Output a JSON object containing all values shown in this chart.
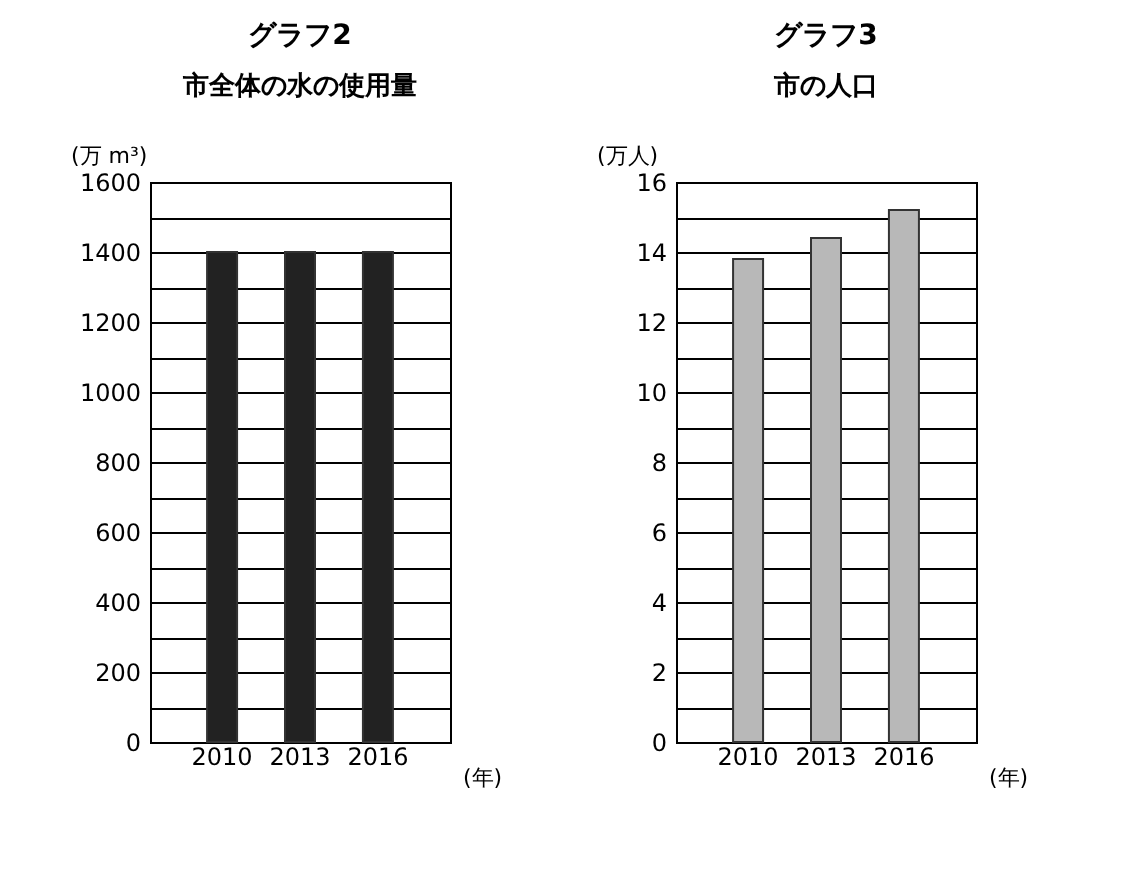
{
  "chart_data": [
    {
      "type": "bar",
      "title": "グラフ2",
      "subtitle": "市全体の水の使用量",
      "ylabel": "(万 m³)",
      "xlabel": "(年)",
      "categories": [
        "2010",
        "2013",
        "2016"
      ],
      "values": [
        1400,
        1400,
        1400
      ],
      "color": "#222222",
      "ylim": [
        0,
        1600
      ],
      "yticks": [
        0,
        {
          "value": 100,
          "label": null
        },
        200,
        {
          "value": 300,
          "label": null
        },
        400,
        {
          "value": 500,
          "label": null
        },
        600,
        {
          "value": 700,
          "label": null
        },
        800,
        {
          "value": 900,
          "label": null
        },
        1000,
        {
          "value": 1100,
          "label": null
        },
        1200,
        {
          "value": 1300,
          "label": null
        },
        1400,
        {
          "value": 1500,
          "label": null
        },
        1600
      ],
      "grid": "y"
    },
    {
      "type": "bar",
      "title": "グラフ3",
      "subtitle": "市の人口",
      "ylabel": "(万人)",
      "xlabel": "(年)",
      "categories": [
        "2010",
        "2013",
        "2016"
      ],
      "values": [
        13.8,
        14.4,
        15.2
      ],
      "color": "#b8b8b8",
      "ylim": [
        0,
        16
      ],
      "yticks": [
        0,
        {
          "value": 1,
          "label": null
        },
        2,
        {
          "value": 3,
          "label": null
        },
        4,
        {
          "value": 5,
          "label": null
        },
        6,
        {
          "value": 7,
          "label": null
        },
        8,
        {
          "value": 9,
          "label": null
        },
        10,
        {
          "value": 11,
          "label": null
        },
        12,
        {
          "value": 13,
          "label": null
        },
        14,
        {
          "value": 15,
          "label": null
        },
        16
      ],
      "grid": "y"
    }
  ]
}
